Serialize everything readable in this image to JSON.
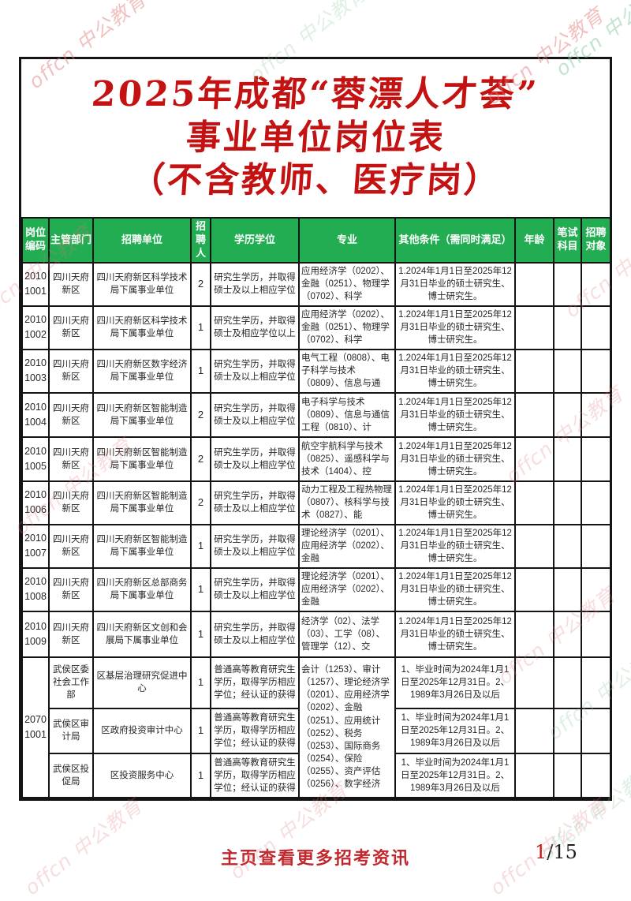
{
  "page": {
    "title_lines": [
      "2025年成都“蓉漂人才荟”",
      "事业单位岗位表",
      "（不含教师、医疗岗）"
    ],
    "watermark": "offcn 中公教育",
    "footer": {
      "home_link": "主页查看更多招考资讯",
      "page_current": "1",
      "page_rest": "/15"
    }
  },
  "table": {
    "headers": [
      "岗位编码",
      "主管部门",
      "招聘单位",
      "招聘人",
      "学历学位",
      "专业",
      "其他条件（需同时满足）",
      "年龄",
      "笔试科目",
      "招聘对象"
    ],
    "rows": [
      {
        "code_lines": [
          "2010",
          "1001"
        ],
        "dept": "四川天府新区",
        "unit": "四川天府新区科学技术局下属事业单位",
        "count": "2",
        "education": "研究生学历，并取得硕士及以上相应学位",
        "major": "应用经济学（0202）、金融（0251）、物理学（0702）、科学",
        "other_conditions": "1.2024年1月1日至2025年12月31日毕业的硕士研究生、博士研究生。"
      },
      {
        "code_lines": [
          "2010",
          "1002"
        ],
        "dept": "四川天府新区",
        "unit": "四川天府新区科学技术局下属事业单位",
        "count": "1",
        "education": "研究生学历，并取得硕士及相应学位以上",
        "major": "应用经济学（0202）、金融（0251）、物理学（0702）、科学",
        "other_conditions": "1.2024年1月1日至2025年12月31日毕业的硕士研究生、博士研究生。"
      },
      {
        "code_lines": [
          "2010",
          "1003"
        ],
        "dept": "四川天府新区",
        "unit": "四川天府新区数字经济局下属事业单位",
        "count": "1",
        "education": "研究生学历，并取得硕士及以上相应学位",
        "major": "电气工程（0808）、电子科学与技术（0809）、信息与通",
        "other_conditions": "1.2024年1月1日至2025年12月31日毕业的硕士研究生、博士研究生。"
      },
      {
        "code_lines": [
          "2010",
          "1004"
        ],
        "dept": "四川天府新区",
        "unit": "四川天府新区智能制造局下属事业单位",
        "count": "2",
        "education": "研究生学历，并取得硕士及以上相应学位",
        "major": "电子科学与技术（0809）、信息与通信工程（0810）、计",
        "other_conditions": "1.2024年1月1日至2025年12月31日毕业的硕士研究生、博士研究生。"
      },
      {
        "code_lines": [
          "2010",
          "1005"
        ],
        "dept": "四川天府新区",
        "unit": "四川天府新区智能制造局下属事业单位",
        "count": "2",
        "education": "研究生学历，并取得硕士及以上相应学位",
        "major": "航空宇航科学与技术（0825）、遥感科学与技术（1404）、控",
        "other_conditions": "1.2024年1月1日至2025年12月31日毕业的硕士研究生、博士研究生。"
      },
      {
        "code_lines": [
          "2010",
          "1006"
        ],
        "dept": "四川天府新区",
        "unit": "四川天府新区智能制造局下属事业单位",
        "count": "2",
        "education": "研究生学历，并取得硕士及以上相应学位",
        "major": "动力工程及工程热物理（0807）、核科学与技术（0827）、能",
        "other_conditions": "1.2024年1月1日至2025年12月31日毕业的硕士研究生、博士研究生。"
      },
      {
        "code_lines": [
          "2010",
          "1007"
        ],
        "dept": "四川天府新区",
        "unit": "四川天府新区智能制造局下属事业单位",
        "count": "1",
        "education": "研究生学历，并取得硕士及以上相应学位",
        "major": "理论经济学（0201）、应用经济学（0202）、金融",
        "other_conditions": "1.2024年1月1日至2025年12月31日毕业的硕士研究生、博士研究生。"
      },
      {
        "code_lines": [
          "2010",
          "1008"
        ],
        "dept": "四川天府新区",
        "unit": "四川天府新区总部商务局下属事业单位",
        "count": "1",
        "education": "研究生学历，并取得硕士及以上相应学位",
        "major": "理论经济学（0201）、应用经济学（0202）、金融",
        "other_conditions": "1.2024年1月1日至2025年12月31日毕业的硕士研究生、博士研究生。"
      },
      {
        "code_lines": [
          "2010",
          "1009"
        ],
        "dept": "四川天府新区",
        "unit": "四川天府新区文创和会展局下属事业单位",
        "count": "1",
        "education": "研究生学历，并取得硕士及以上相应学位",
        "major": "经济学（02）、法学（03）、工学（08）、管理学（12）、交",
        "other_conditions": "1.2024年1月1日至2025年12月31日毕业的硕士研究生、博士研究生。"
      }
    ],
    "merged_group": {
      "code_lines": [
        "2070",
        "1001"
      ],
      "major": "会计（1253）、审计（1257）、理论经济学（0201）、应用经济学（0202）、金融（0251）、应用统计（0252）、税务（0253）、国际商务（0254）、保险（0255）、资产评估（0256）、数字经济",
      "rows": [
        {
          "dept": "武侯区委社会工作部",
          "unit": "区基层治理研究促进中心",
          "count": "1",
          "education": "普通高等教育研究生学历，取得学历相应学位；经认证的获得",
          "other_conditions": "1、毕业时间为2024年1月1日至2025年12月31日。2、1989年3月26日及以后"
        },
        {
          "dept": "武侯区审计局",
          "unit": "区政府投资审计中心",
          "count": "1",
          "education": "普通高等教育研究生学历，取得学历相应学位；经认证的获得",
          "other_conditions": "1、毕业时间为2024年1月1日至2025年12月31日。2、1989年3月26日及以后"
        },
        {
          "dept": "武侯区投促局",
          "unit": "区投资服务中心",
          "count": "1",
          "education": "普通高等教育研究生学历，取得学历相应学位；经认证的获得",
          "other_conditions": "1、毕业时间为2024年1月1日至2025年12月31日。2、1989年3月26日及以后"
        }
      ]
    }
  }
}
